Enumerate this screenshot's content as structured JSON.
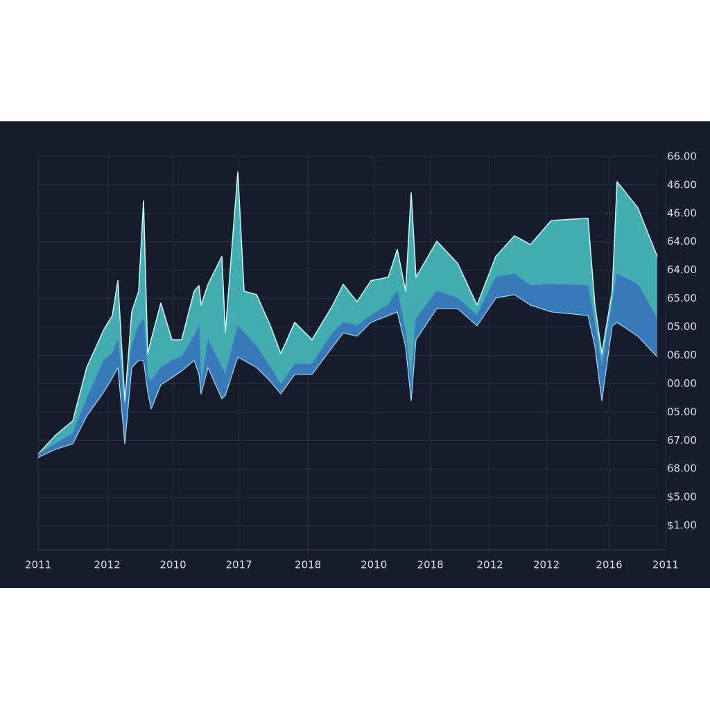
{
  "chart_data": {
    "type": "area",
    "grid": true,
    "xlim": [
      0,
      100
    ],
    "ylim": [
      0,
      15
    ],
    "xticks": [
      {
        "value": 0,
        "label": "2011"
      },
      {
        "value": 11,
        "label": "2012"
      },
      {
        "value": 21.5,
        "label": "2010"
      },
      {
        "value": 32,
        "label": "2017"
      },
      {
        "value": 43,
        "label": "2018"
      },
      {
        "value": 53.5,
        "label": "2010"
      },
      {
        "value": 62.5,
        "label": "2018"
      },
      {
        "value": 72,
        "label": "2012"
      },
      {
        "value": 81,
        "label": "2012"
      },
      {
        "value": 91,
        "label": "2016"
      },
      {
        "value": 100,
        "label": "2011"
      }
    ],
    "yticks": [
      {
        "value": 1,
        "label": "$1.00"
      },
      {
        "value": 2,
        "label": "$5.00"
      },
      {
        "value": 3,
        "label": "68.00"
      },
      {
        "value": 4,
        "label": "67.00"
      },
      {
        "value": 5,
        "label": "05.00"
      },
      {
        "value": 6,
        "label": "00.00"
      },
      {
        "value": 7,
        "label": "06.00"
      },
      {
        "value": 8,
        "label": "05.00"
      },
      {
        "value": 9,
        "label": "65.00"
      },
      {
        "value": 10,
        "label": "64.00"
      },
      {
        "value": 11,
        "label": "64.00"
      },
      {
        "value": 12,
        "label": "46.00"
      },
      {
        "value": 13,
        "label": "46.00"
      },
      {
        "value": 14,
        "label": "66.00"
      }
    ],
    "x": [
      0,
      2.76,
      5.52,
      7.73,
      10.5,
      11.82,
      12.71,
      13.81,
      14.92,
      16.02,
      16.8,
      17.46,
      18.01,
      19.56,
      21.33,
      22.87,
      24.86,
      25.64,
      25.97,
      27.07,
      29.28,
      29.83,
      31.82,
      32.82,
      34.81,
      37.02,
      38.67,
      40.88,
      43.65,
      46.96,
      48.62,
      50.83,
      53.04,
      55.8,
      57.24,
      58.56,
      59.45,
      60.22,
      63.54,
      66.85,
      69.94,
      72.93,
      75.91,
      78.45,
      81.77,
      87.62,
      88.73,
      89.83,
      91.49,
      92.27,
      95.58,
      98.67
    ],
    "series": [
      {
        "color": "#44b4b8",
        "values": [
          3.52,
          4.18,
          4.69,
          6.57,
          7.92,
          8.4,
          9.63,
          5.35,
          8.53,
          9.26,
          12.44,
          7.06,
          7.55,
          8.84,
          7.55,
          7.55,
          9.26,
          9.46,
          8.77,
          9.5,
          10.48,
          7.79,
          13.46,
          9.26,
          9.14,
          8.04,
          7.06,
          8.16,
          7.55,
          8.77,
          9.5,
          8.89,
          9.63,
          9.75,
          10.73,
          9.26,
          12.73,
          9.75,
          11.02,
          10.24,
          8.77,
          10.48,
          11.21,
          10.9,
          11.75,
          11.83,
          8.77,
          7.06,
          9.26,
          13.12,
          12.19,
          10.48
        ]
      },
      {
        "color": "#3a7ec2",
        "values": [
          3.52,
          3.88,
          4.25,
          5.47,
          6.82,
          7.06,
          7.55,
          5.11,
          7.31,
          8.04,
          8.28,
          6.21,
          6.08,
          6.57,
          6.82,
          6.94,
          7.67,
          8.04,
          5.84,
          7.55,
          6.57,
          6.33,
          8.04,
          7.79,
          7.31,
          6.57,
          5.96,
          6.69,
          6.69,
          7.79,
          8.16,
          8.04,
          8.4,
          8.77,
          9.26,
          7.79,
          6.08,
          8.28,
          9.26,
          9.02,
          8.4,
          9.75,
          9.87,
          9.46,
          9.5,
          9.46,
          8.04,
          6.57,
          8.77,
          9.87,
          9.5,
          8.28
        ]
      },
      {
        "color": "#a9d8ee",
        "values": [
          3.4,
          3.69,
          3.88,
          4.86,
          5.72,
          6.21,
          6.57,
          3.88,
          6.57,
          6.82,
          6.82,
          5.72,
          5.11,
          5.96,
          6.21,
          6.45,
          6.82,
          6.33,
          5.64,
          6.57,
          5.47,
          5.59,
          6.94,
          6.82,
          6.57,
          6.08,
          5.64,
          6.33,
          6.33,
          7.31,
          7.79,
          7.67,
          8.16,
          8.4,
          8.53,
          7.31,
          5.4,
          7.55,
          8.65,
          8.65,
          8.04,
          9.02,
          9.14,
          8.77,
          8.53,
          8.4,
          7.31,
          5.4,
          8.04,
          8.16,
          7.67,
          6.94
        ]
      }
    ]
  }
}
